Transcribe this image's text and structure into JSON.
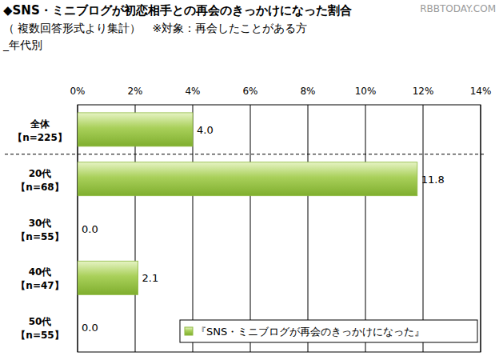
{
  "chart_data": {
    "type": "bar",
    "orientation": "horizontal",
    "title": "◆SNS・ミニブログが初恋相手との再会のきっかけになった割合",
    "subtitle": "（ 複数回答形式より集計）　※対象：再会したことがある方",
    "annotations": [
      "_年代別",
      "RBBTODAY.COM"
    ],
    "categories": [
      "全体【n=225】",
      "20代【n=68】",
      "30代【n=55】",
      "40代【n=47】",
      "50代【n=55】"
    ],
    "series": [
      {
        "name": "『SNS・ミニブログが再会のきっかけになった』",
        "color": "#a9d05a",
        "values": [
          4.0,
          11.8,
          0.0,
          2.1,
          0.0
        ],
        "value_labels": [
          "4.0",
          "11.8",
          "0.0",
          "2.1",
          "0.0"
        ]
      }
    ],
    "xlim": [
      0,
      14
    ],
    "xticks": [
      {
        "value": 0,
        "label": "0%"
      },
      {
        "value": 2,
        "label": "2%"
      },
      {
        "value": 4,
        "label": "4%"
      },
      {
        "value": 6,
        "label": "6%"
      },
      {
        "value": 8,
        "label": "8%"
      },
      {
        "value": 10,
        "label": "10%"
      },
      {
        "value": 12,
        "label": "12%"
      },
      {
        "value": 14,
        "label": "14%"
      }
    ],
    "grid": true,
    "data_labels": true,
    "legend": "lower right"
  }
}
